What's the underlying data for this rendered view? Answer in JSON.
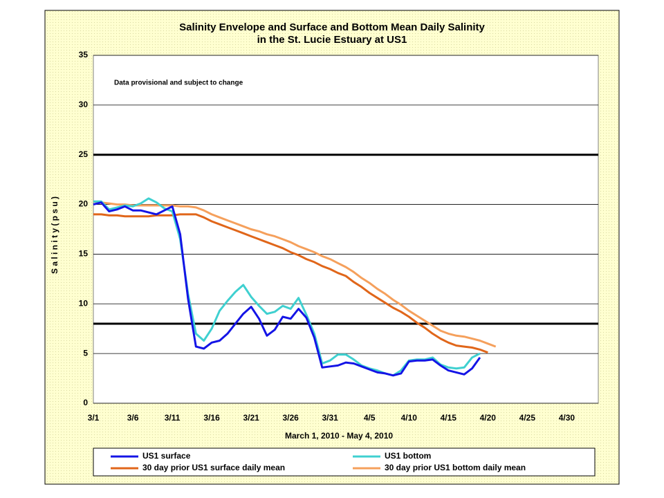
{
  "chart_data": {
    "type": "line",
    "title": "Salinity Envelope and Surface and Bottom Mean Daily Salinity",
    "subtitle": "in the St. Lucie Estuary at US1",
    "annotation": "Data provisional and subject to change",
    "x_label": "March 1, 2010 - May 4, 2010",
    "y_label": "S a l i n i t y   ( p s u )",
    "categories": [
      "3/1",
      null,
      null,
      null,
      null,
      "3/6",
      null,
      null,
      null,
      null,
      "3/11",
      null,
      null,
      null,
      null,
      "3/16",
      null,
      null,
      null,
      null,
      "3/21",
      null,
      null,
      null,
      null,
      "3/26",
      null,
      null,
      null,
      null,
      "3/31",
      null,
      null,
      null,
      null,
      "4/5",
      null,
      null,
      null,
      null,
      "4/10",
      null,
      null,
      null,
      null,
      "4/15",
      null,
      null,
      null,
      null,
      "4/20",
      null,
      null,
      null,
      null,
      "4/25",
      null,
      null,
      null,
      null,
      "4/30",
      null,
      null,
      null,
      null
    ],
    "series": [
      {
        "name": "US1 surface",
        "color": "#1414e6",
        "values": [
          20,
          20.2,
          19.3,
          19.5,
          19.8,
          19.4,
          19.4,
          19.2,
          19.0,
          19.4,
          19.8,
          17,
          10.5,
          5.7,
          5.5,
          6.1,
          6.3,
          7.0,
          8.0,
          9.0,
          9.7,
          8.5,
          6.8,
          7.4,
          8.7,
          8.5,
          9.5,
          8.6,
          6.6,
          3.6,
          3.7,
          3.8,
          4.1,
          4.0,
          3.7,
          3.4,
          3.1,
          3.0,
          2.8,
          3.0,
          4.2,
          4.3,
          4.3,
          4.4,
          3.8,
          3.3,
          3.1,
          2.9,
          3.5,
          4.6,
          null,
          null,
          null,
          null,
          null,
          null,
          null,
          null,
          null,
          null,
          null,
          null,
          null,
          null,
          null
        ]
      },
      {
        "name": "US1 bottom",
        "color": "#3fd0d0",
        "values": [
          20.3,
          20.3,
          19.5,
          19.7,
          19.9,
          19.8,
          20.1,
          20.6,
          20.2,
          19.6,
          19.3,
          16.5,
          11,
          7.0,
          6.3,
          7.5,
          9.3,
          10.3,
          11.2,
          11.9,
          10.7,
          9.8,
          9.0,
          9.2,
          9.8,
          9.5,
          10.6,
          8.9,
          7.0,
          4.0,
          4.3,
          4.9,
          4.9,
          4.4,
          3.8,
          3.5,
          3.3,
          3.0,
          2.8,
          3.3,
          4.3,
          4.4,
          4.4,
          4.6,
          3.9,
          3.6,
          3.5,
          3.6,
          4.6,
          5.0,
          null,
          null,
          null,
          null,
          null,
          null,
          null,
          null,
          null,
          null,
          null,
          null,
          null,
          null,
          null
        ]
      },
      {
        "name": "30 day prior US1 surface daily mean",
        "color": "#e0661a",
        "values": [
          19.0,
          19.0,
          18.9,
          18.9,
          18.8,
          18.8,
          18.8,
          18.8,
          18.9,
          18.9,
          18.9,
          19.0,
          19.0,
          19.0,
          18.7,
          18.3,
          18.0,
          17.7,
          17.4,
          17.1,
          16.8,
          16.5,
          16.2,
          15.9,
          15.6,
          15.2,
          14.9,
          14.5,
          14.2,
          13.8,
          13.5,
          13.1,
          12.8,
          12.2,
          11.7,
          11.1,
          10.6,
          10.1,
          9.6,
          9.2,
          8.7,
          8.1,
          7.6,
          7.0,
          6.5,
          6.1,
          5.8,
          5.7,
          5.6,
          5.4,
          5.1,
          null,
          null,
          null,
          null,
          null,
          null,
          null,
          null,
          null,
          null,
          null,
          null,
          null,
          null
        ]
      },
      {
        "name": "30 day prior US1 bottom daily mean",
        "color": "#f5a05c",
        "values": [
          20.3,
          20.2,
          20.1,
          20.0,
          20.0,
          19.9,
          19.9,
          19.9,
          19.9,
          19.9,
          19.9,
          19.8,
          19.8,
          19.7,
          19.4,
          19.0,
          18.7,
          18.4,
          18.1,
          17.8,
          17.5,
          17.3,
          17.0,
          16.8,
          16.5,
          16.2,
          15.8,
          15.5,
          15.2,
          14.8,
          14.5,
          14.1,
          13.7,
          13.2,
          12.6,
          12.1,
          11.5,
          11.0,
          10.4,
          9.9,
          9.3,
          8.8,
          8.3,
          7.8,
          7.3,
          7.0,
          6.8,
          6.7,
          6.5,
          6.3,
          6.0,
          5.7,
          null,
          null,
          null,
          null,
          null,
          null,
          null,
          null,
          null,
          null,
          null,
          null,
          null
        ]
      }
    ],
    "reference_lines": [
      25,
      8
    ],
    "reference_color": "#000000",
    "ylim": [
      0,
      35
    ],
    "yticks": [
      0,
      5,
      10,
      15,
      20,
      25,
      30,
      35
    ],
    "grid": true
  }
}
